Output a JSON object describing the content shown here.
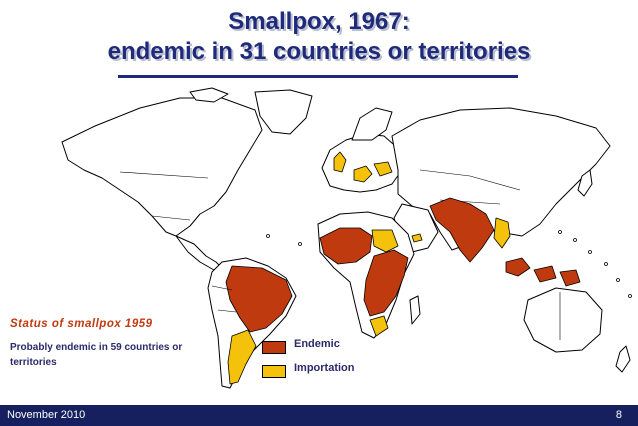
{
  "title": {
    "line1": "Smallpox, 1967:",
    "line2": "endemic in 31 countries or territories"
  },
  "status": {
    "heading": "Status of smallpox 1959",
    "note": "Probably endemic in 59 countries or territories"
  },
  "legend": {
    "endemic_label": "Endemic",
    "importation_label": "Importation",
    "endemic_color": "#c03a10",
    "importation_color": "#f4c20a"
  },
  "footer": {
    "date": "November 2010",
    "page": "8"
  }
}
